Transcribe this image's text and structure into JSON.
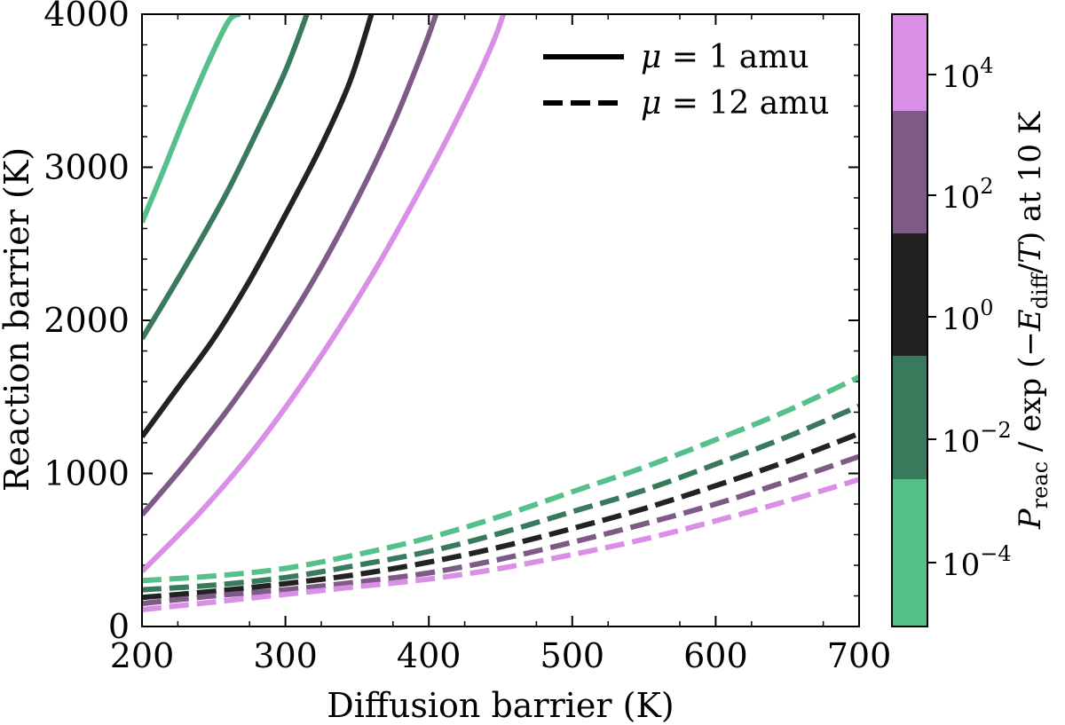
{
  "chart_data": {
    "type": "line",
    "title": "",
    "xlabel": "Diffusion barrier (K)",
    "ylabel": "Reaction barrier (K)",
    "xlim": [
      200,
      700
    ],
    "ylim": [
      0,
      4000
    ],
    "xticks": [
      "200",
      "300",
      "400",
      "500",
      "600",
      "700"
    ],
    "yticks": [
      "0",
      "1000",
      "2000",
      "3000",
      "4000"
    ],
    "legend": {
      "position": "top-right",
      "entries": [
        {
          "style": "solid",
          "mu_symbol": "μ",
          "text": " = 1 amu"
        },
        {
          "style": "dashed",
          "mu_symbol": "μ",
          "text": " = 12 amu"
        }
      ]
    },
    "colorbar": {
      "label_parts": {
        "P": "P",
        "reac": "reac",
        "slash_exp": " / exp (−",
        "E": "E",
        "diff": "diff",
        "slash": "/",
        "T": "T",
        "tail": ") at 10 K"
      },
      "ticks": [
        {
          "base": "10",
          "exp": "−4"
        },
        {
          "base": "10",
          "exp": "−2"
        },
        {
          "base": "10",
          "exp": "0"
        },
        {
          "base": "10",
          "exp": "2"
        },
        {
          "base": "10",
          "exp": "4"
        }
      ],
      "bands": [
        {
          "level": "1e-4",
          "color": "#55c08a"
        },
        {
          "level": "1e-2",
          "color": "#3a7a5c"
        },
        {
          "level": "1e0",
          "color": "#222222"
        },
        {
          "level": "1e2",
          "color": "#7e5a86"
        },
        {
          "level": "1e4",
          "color": "#da8fe6"
        }
      ]
    },
    "series": [
      {
        "name": "μ=1 amu, 1e-4",
        "style": "solid",
        "color": "#55c08a",
        "x": [
          200,
          215,
          230,
          245,
          260,
          268
        ],
        "y": [
          2640,
          2980,
          3330,
          3660,
          3950,
          4000
        ]
      },
      {
        "name": "μ=1 amu, 1e-2",
        "style": "solid",
        "color": "#3a7a5c",
        "x": [
          200,
          220,
          240,
          260,
          280,
          300,
          315
        ],
        "y": [
          1880,
          2190,
          2510,
          2850,
          3230,
          3630,
          4000
        ]
      },
      {
        "name": "μ=1 amu, 1e0",
        "style": "solid",
        "color": "#222222",
        "x": [
          200,
          225,
          250,
          275,
          300,
          325,
          345,
          360
        ],
        "y": [
          1240,
          1560,
          1880,
          2260,
          2690,
          3140,
          3560,
          4000
        ]
      },
      {
        "name": "μ=1 amu, 1e2",
        "style": "solid",
        "color": "#7e5a86",
        "x": [
          200,
          230,
          260,
          290,
          320,
          350,
          375,
          395,
          405
        ],
        "y": [
          730,
          1060,
          1420,
          1820,
          2270,
          2790,
          3280,
          3740,
          4000
        ]
      },
      {
        "name": "μ=1 amu, 1e4",
        "style": "solid",
        "color": "#da8fe6",
        "x": [
          200,
          240,
          280,
          320,
          360,
          400,
          430,
          445,
          452
        ],
        "y": [
          360,
          740,
          1180,
          1700,
          2290,
          2960,
          3510,
          3820,
          4000
        ]
      },
      {
        "name": "μ=12 amu, 1e-4",
        "style": "dashed",
        "color": "#55c08a",
        "x": [
          200,
          250,
          300,
          350,
          400,
          450,
          500,
          550,
          600,
          650,
          700
        ],
        "y": [
          300,
          330,
          380,
          470,
          580,
          720,
          880,
          1040,
          1220,
          1410,
          1630
        ]
      },
      {
        "name": "μ=12 amu, 1e-2",
        "style": "dashed",
        "color": "#3a7a5c",
        "x": [
          200,
          250,
          300,
          350,
          400,
          450,
          500,
          550,
          600,
          650,
          700
        ],
        "y": [
          240,
          270,
          320,
          400,
          490,
          610,
          750,
          890,
          1060,
          1240,
          1440
        ]
      },
      {
        "name": "μ=12 amu, 1e0",
        "style": "dashed",
        "color": "#222222",
        "x": [
          200,
          250,
          300,
          350,
          400,
          450,
          500,
          550,
          600,
          650,
          700
        ],
        "y": [
          190,
          230,
          280,
          340,
          420,
          520,
          640,
          770,
          920,
          1080,
          1260
        ]
      },
      {
        "name": "μ=12 amu, 1e2",
        "style": "dashed",
        "color": "#7e5a86",
        "x": [
          200,
          250,
          300,
          350,
          400,
          450,
          500,
          550,
          600,
          650,
          700
        ],
        "y": [
          150,
          200,
          240,
          290,
          350,
          440,
          550,
          670,
          800,
          950,
          1110
        ]
      },
      {
        "name": "μ=12 amu, 1e4",
        "style": "dashed",
        "color": "#da8fe6",
        "x": [
          200,
          250,
          300,
          350,
          400,
          450,
          500,
          550,
          600,
          650,
          700
        ],
        "y": [
          110,
          160,
          210,
          260,
          310,
          380,
          470,
          570,
          690,
          820,
          960
        ]
      }
    ]
  }
}
